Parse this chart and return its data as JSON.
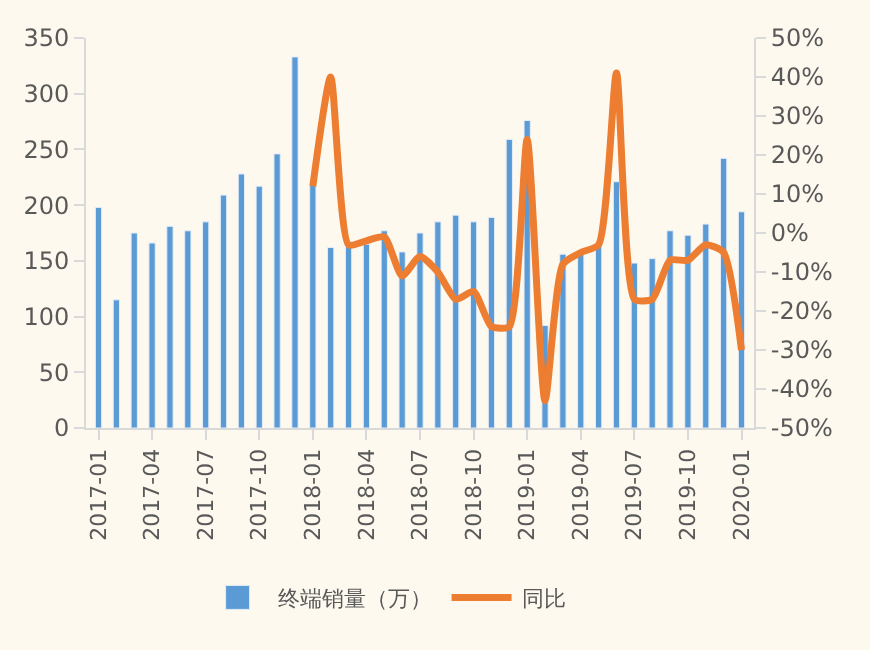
{
  "chart_data": {
    "type": "bar",
    "categories": [
      "2017-01",
      null,
      null,
      "2017-04",
      null,
      null,
      "2017-07",
      null,
      null,
      "2017-10",
      null,
      null,
      "2018-01",
      null,
      null,
      "2018-04",
      null,
      null,
      "2018-07",
      null,
      null,
      "2018-10",
      null,
      null,
      "2019-01",
      null,
      null,
      "2019-04",
      null,
      null,
      "2019-07",
      null,
      null,
      "2019-10",
      null,
      null,
      "2020-01"
    ],
    "series": [
      {
        "name": "终端销量（万）",
        "color": "#5b9bd5",
        "values": [
          198,
          115,
          175,
          166,
          181,
          177,
          185,
          209,
          228,
          217,
          246,
          333,
          218,
          162,
          165,
          165,
          177,
          158,
          175,
          185,
          191,
          185,
          189,
          259,
          276,
          92,
          156,
          158,
          165,
          221,
          148,
          152,
          177,
          173,
          183,
          242,
          194
        ]
      },
      {
        "name": "同比",
        "type": "line",
        "axis": "y2",
        "color": "#ed7d31",
        "values": [
          null,
          null,
          null,
          null,
          null,
          null,
          null,
          null,
          null,
          null,
          null,
          null,
          12,
          40,
          -3,
          -2,
          -1,
          -11,
          -6,
          -10,
          -17,
          -15,
          -24,
          -24,
          24,
          -43,
          -8,
          -5,
          -3,
          41,
          -17,
          -17,
          -7,
          -7,
          -3,
          -5,
          -30
        ]
      }
    ],
    "ylim": [
      0,
      350
    ],
    "yticks": [
      0,
      50,
      100,
      150,
      200,
      250,
      300,
      350
    ],
    "y2lim": [
      -50,
      50
    ],
    "y2ticks": [
      {
        "value": -50,
        "label": "-50%"
      },
      {
        "value": -40,
        "label": "-40%"
      },
      {
        "value": -30,
        "label": "-30%"
      },
      {
        "value": -20,
        "label": "-20%"
      },
      {
        "value": -10,
        "label": "-10%"
      },
      {
        "value": 0,
        "label": "0%"
      },
      {
        "value": 10,
        "label": "10%"
      },
      {
        "value": 20,
        "label": "20%"
      },
      {
        "value": 30,
        "label": "30%"
      },
      {
        "value": 40,
        "label": "40%"
      },
      {
        "value": 50,
        "label": "50%"
      }
    ],
    "legend": "bottom",
    "grid": false
  }
}
